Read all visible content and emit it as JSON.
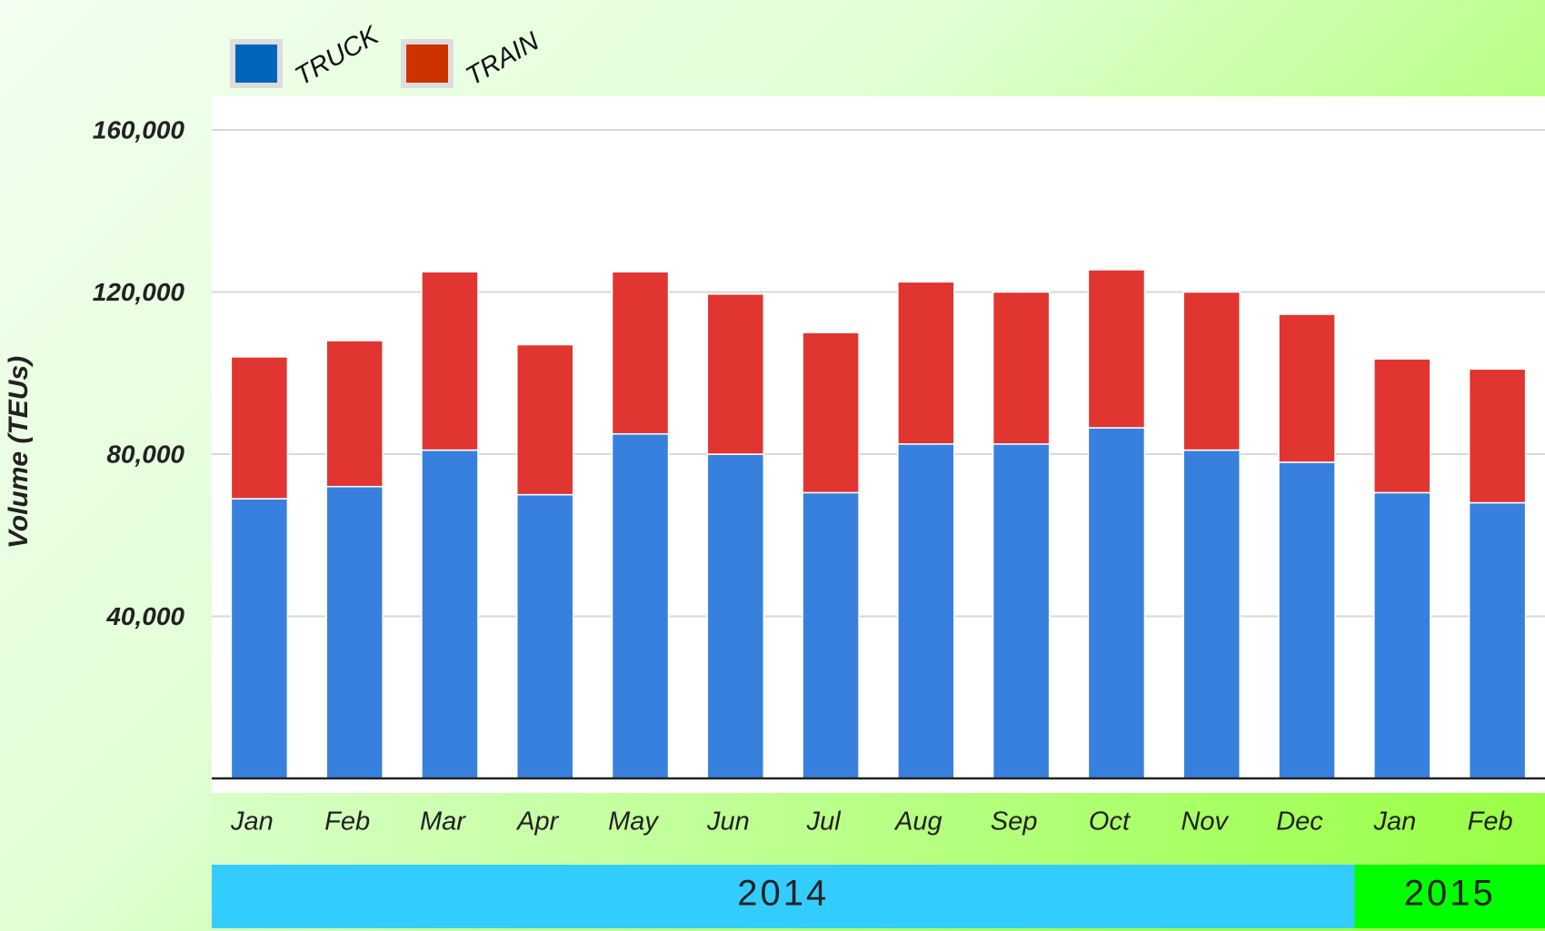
{
  "chart_data": {
    "type": "stacked_bar",
    "y_axis_label": "Volume (TEUs)",
    "categories": [
      "Jan",
      "Feb",
      "Mar",
      "Apr",
      "May",
      "Jun",
      "Jul",
      "Aug",
      "Sep",
      "Oct",
      "Nov",
      "Dec",
      "Jan",
      "Feb"
    ],
    "category_groups": [
      {
        "label": "2014",
        "size": 12,
        "color": "#33ccff"
      },
      {
        "label": "2015",
        "size": 2,
        "color": "#00ff00"
      }
    ],
    "series": [
      {
        "name": "TRUCK",
        "color": "#3880dd",
        "legend_color": "#0066bb",
        "values": [
          69000,
          72000,
          81000,
          70000,
          85000,
          80000,
          70500,
          82500,
          82500,
          86500,
          81000,
          78000,
          70500,
          68000
        ]
      },
      {
        "name": "TRAIN",
        "color": "#e03530",
        "legend_color": "#cc3300",
        "values": [
          35000,
          36000,
          44000,
          37000,
          40000,
          39500,
          39500,
          40000,
          37500,
          39000,
          39000,
          36500,
          33000,
          33000
        ]
      }
    ],
    "ylim": [
      0,
      160000
    ],
    "yticks": [
      {
        "value": 40000,
        "label": "40,000"
      },
      {
        "value": 80000,
        "label": "80,000"
      },
      {
        "value": 120000,
        "label": "120,000"
      },
      {
        "value": 160000,
        "label": "160,000"
      }
    ],
    "grid": true
  }
}
